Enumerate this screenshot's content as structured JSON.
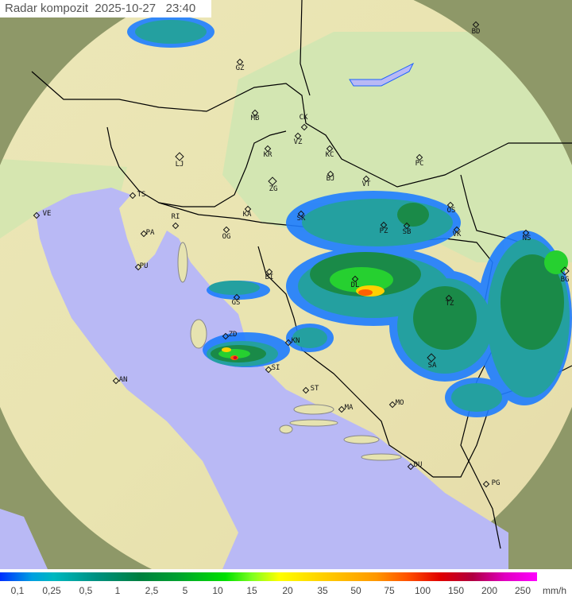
{
  "title": {
    "label": "Radar kompozit",
    "date": "2025-10-27",
    "time": "23:40"
  },
  "colors": {
    "sea": "#b9b9f5",
    "land": "#efe9b4",
    "lowland": "#cfe4b0",
    "outside_range": "#8f9a6a"
  },
  "cities": [
    {
      "code": "BD"
    },
    {
      "code": "GZ"
    },
    {
      "code": "MB"
    },
    {
      "code": "CK"
    },
    {
      "code": "VZ"
    },
    {
      "code": "KC"
    },
    {
      "code": "KR"
    },
    {
      "code": "LJ"
    },
    {
      "code": "BJ"
    },
    {
      "code": "PC"
    },
    {
      "code": "ZG"
    },
    {
      "code": "VT"
    },
    {
      "code": "TS"
    },
    {
      "code": "VE"
    },
    {
      "code": "RI"
    },
    {
      "code": "KA"
    },
    {
      "code": "SK"
    },
    {
      "code": "OS"
    },
    {
      "code": "PA"
    },
    {
      "code": "OG"
    },
    {
      "code": "PZ"
    },
    {
      "code": "SB"
    },
    {
      "code": "VK"
    },
    {
      "code": "NS"
    },
    {
      "code": "PU"
    },
    {
      "code": "BI"
    },
    {
      "code": "DL"
    },
    {
      "code": "BG"
    },
    {
      "code": "TZ"
    },
    {
      "code": "GS"
    },
    {
      "code": "ZD"
    },
    {
      "code": "KN"
    },
    {
      "code": "SI"
    },
    {
      "code": "SA"
    },
    {
      "code": "AN"
    },
    {
      "code": "ST"
    },
    {
      "code": "MA"
    },
    {
      "code": "MO"
    },
    {
      "code": "DU"
    },
    {
      "code": "PG"
    }
  ],
  "legend": {
    "unit": "mm/h",
    "values": [
      "0,1",
      "0,25",
      "0,5",
      "1",
      "2,5",
      "5",
      "10",
      "15",
      "20",
      "35",
      "50",
      "75",
      "100",
      "150",
      "200",
      "250"
    ]
  }
}
